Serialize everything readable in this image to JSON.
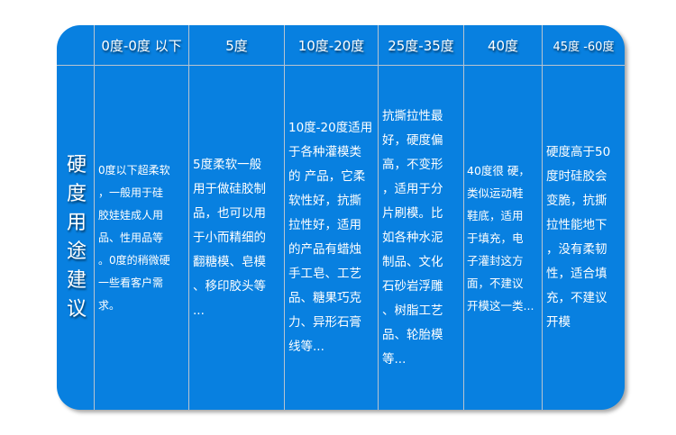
{
  "row_label": "硬度用途建议",
  "headers": [
    "0度-0度 以下",
    "5度",
    "10度-20度",
    "25度-35度",
    "40度",
    "45度 -60度"
  ],
  "cells": [
    [
      "0度以下超柔软",
      "，一般用于硅",
      "胶娃娃成人用",
      "品、性用品等",
      "。0度的稍微硬",
      "一些看客户需",
      "求。"
    ],
    [
      "5度柔软一般",
      "用于做硅胶制",
      "品，也可以用",
      "于小而精细的",
      "翻糖模、皂模",
      "、移印胶头等",
      "..."
    ],
    [
      "10度-20度适用",
      "于各种灌模类",
      "的 产品，它柔",
      "软性好，抗撕",
      "拉性好，适用",
      "的产品有蜡烛",
      "手工皂、工艺",
      "品、糖果巧克",
      "力、异形石膏",
      "线等..."
    ],
    [
      "抗撕拉性最",
      "好，硬度偏",
      "高，不变形",
      "，适用于分",
      "片刷模。比",
      "如各种水泥",
      "制品、文化",
      "石砂岩浮雕",
      "、树脂工艺",
      "品、轮胎模",
      "等..."
    ],
    [
      "40度很 硬，",
      "类似运动鞋",
      "鞋底，适用",
      "于填充，电",
      "子灌封这方",
      "面，不建议",
      "开模这一类..."
    ],
    [
      "硬度高于50",
      "度时硅胶会",
      "变脆，抗撕",
      "拉性能地下",
      "，没有柔韧",
      "性，适合填",
      "充，不建议",
      "开模"
    ]
  ],
  "colors": {
    "background": "#0880e0",
    "grid": "#b8c4d0",
    "text": "#ffffff"
  }
}
